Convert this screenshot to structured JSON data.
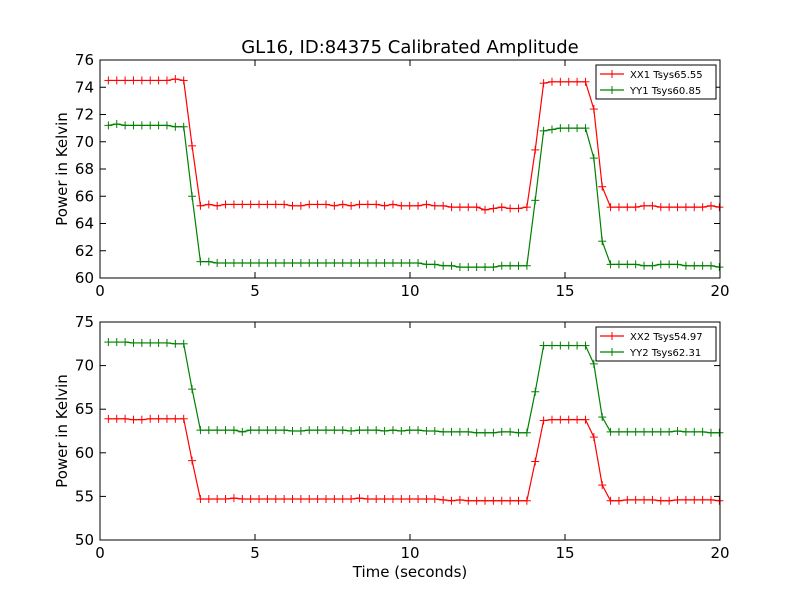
{
  "figure": {
    "title": "GL16, ID:84375 Calibrated Amplitude"
  },
  "chart_data": [
    {
      "type": "line",
      "title": "GL16, ID:84375 Calibrated Amplitude",
      "xlabel": "",
      "ylabel": "Power in Kelvin",
      "xlim": [
        0,
        20
      ],
      "ylim": [
        60,
        76
      ],
      "xticks": [
        0,
        5,
        10,
        15,
        20
      ],
      "yticks": [
        60,
        62,
        64,
        66,
        68,
        70,
        72,
        74,
        76
      ],
      "grid": false,
      "legend_position": "top-right",
      "x": [
        0.27,
        0.54,
        0.81,
        1.08,
        1.35,
        1.62,
        1.89,
        2.16,
        2.43,
        2.7,
        2.97,
        3.24,
        3.51,
        3.78,
        4.05,
        4.32,
        4.59,
        4.86,
        5.13,
        5.4,
        5.67,
        5.94,
        6.21,
        6.48,
        6.75,
        7.02,
        7.29,
        7.56,
        7.83,
        8.1,
        8.37,
        8.64,
        8.91,
        9.18,
        9.45,
        9.72,
        9.99,
        10.26,
        10.53,
        10.8,
        11.07,
        11.34,
        11.61,
        11.88,
        12.15,
        12.42,
        12.69,
        12.96,
        13.23,
        13.5,
        13.77,
        14.04,
        14.31,
        14.58,
        14.85,
        15.12,
        15.39,
        15.66,
        15.93,
        16.2,
        16.47,
        16.74,
        17.01,
        17.28,
        17.55,
        17.82,
        18.09,
        18.36,
        18.63,
        18.9,
        19.17,
        19.44,
        19.71,
        19.98
      ],
      "series": [
        {
          "name": "XX1 Tsys65.55",
          "color": "#ff0000",
          "values": [
            74.5,
            74.5,
            74.5,
            74.5,
            74.5,
            74.5,
            74.5,
            74.5,
            74.6,
            74.5,
            69.7,
            65.3,
            65.4,
            65.3,
            65.4,
            65.4,
            65.4,
            65.4,
            65.4,
            65.4,
            65.4,
            65.4,
            65.3,
            65.3,
            65.4,
            65.4,
            65.4,
            65.3,
            65.4,
            65.3,
            65.4,
            65.4,
            65.4,
            65.3,
            65.4,
            65.3,
            65.3,
            65.3,
            65.4,
            65.3,
            65.3,
            65.2,
            65.2,
            65.2,
            65.2,
            65.0,
            65.1,
            65.2,
            65.1,
            65.1,
            65.2,
            69.4,
            74.3,
            74.4,
            74.4,
            74.4,
            74.4,
            74.4,
            72.4,
            66.7,
            65.2,
            65.2,
            65.2,
            65.2,
            65.3,
            65.3,
            65.2,
            65.2,
            65.2,
            65.2,
            65.2,
            65.2,
            65.3,
            65.2
          ]
        },
        {
          "name": "YY1 Tsys60.85",
          "color": "#008000",
          "values": [
            71.2,
            71.3,
            71.2,
            71.2,
            71.2,
            71.2,
            71.2,
            71.2,
            71.1,
            71.1,
            66.0,
            61.2,
            61.2,
            61.1,
            61.1,
            61.1,
            61.1,
            61.1,
            61.1,
            61.1,
            61.1,
            61.1,
            61.1,
            61.1,
            61.1,
            61.1,
            61.1,
            61.1,
            61.1,
            61.1,
            61.1,
            61.1,
            61.1,
            61.1,
            61.1,
            61.1,
            61.1,
            61.1,
            61.0,
            61.0,
            60.9,
            60.9,
            60.8,
            60.8,
            60.8,
            60.8,
            60.8,
            60.9,
            60.9,
            60.9,
            60.9,
            65.7,
            70.8,
            70.9,
            71.0,
            71.0,
            71.0,
            71.0,
            68.8,
            62.7,
            61.0,
            61.0,
            61.0,
            61.0,
            60.9,
            60.9,
            61.0,
            61.0,
            61.0,
            60.9,
            60.9,
            60.9,
            60.9,
            60.8
          ]
        }
      ]
    },
    {
      "type": "line",
      "title": "",
      "xlabel": "Time (seconds)",
      "ylabel": "Power in Kelvin",
      "xlim": [
        0,
        20
      ],
      "ylim": [
        50,
        75
      ],
      "xticks": [
        0,
        5,
        10,
        15,
        20
      ],
      "yticks": [
        50,
        55,
        60,
        65,
        70,
        75
      ],
      "grid": false,
      "legend_position": "top-right",
      "x": [
        0.27,
        0.54,
        0.81,
        1.08,
        1.35,
        1.62,
        1.89,
        2.16,
        2.43,
        2.7,
        2.97,
        3.24,
        3.51,
        3.78,
        4.05,
        4.32,
        4.59,
        4.86,
        5.13,
        5.4,
        5.67,
        5.94,
        6.21,
        6.48,
        6.75,
        7.02,
        7.29,
        7.56,
        7.83,
        8.1,
        8.37,
        8.64,
        8.91,
        9.18,
        9.45,
        9.72,
        9.99,
        10.26,
        10.53,
        10.8,
        11.07,
        11.34,
        11.61,
        11.88,
        12.15,
        12.42,
        12.69,
        12.96,
        13.23,
        13.5,
        13.77,
        14.04,
        14.31,
        14.58,
        14.85,
        15.12,
        15.39,
        15.66,
        15.93,
        16.2,
        16.47,
        16.74,
        17.01,
        17.28,
        17.55,
        17.82,
        18.09,
        18.36,
        18.63,
        18.9,
        19.17,
        19.44,
        19.71,
        19.98
      ],
      "series": [
        {
          "name": "XX2 Tsys54.97",
          "color": "#ff0000",
          "values": [
            63.9,
            63.9,
            63.9,
            63.8,
            63.8,
            63.9,
            63.9,
            63.9,
            63.9,
            63.9,
            59.1,
            54.7,
            54.7,
            54.7,
            54.7,
            54.8,
            54.7,
            54.7,
            54.7,
            54.7,
            54.7,
            54.7,
            54.7,
            54.7,
            54.7,
            54.7,
            54.7,
            54.7,
            54.7,
            54.7,
            54.8,
            54.7,
            54.7,
            54.7,
            54.7,
            54.7,
            54.7,
            54.7,
            54.7,
            54.7,
            54.6,
            54.5,
            54.6,
            54.5,
            54.5,
            54.5,
            54.5,
            54.5,
            54.5,
            54.5,
            54.5,
            59.0,
            63.7,
            63.8,
            63.8,
            63.8,
            63.8,
            63.8,
            61.8,
            56.3,
            54.5,
            54.5,
            54.6,
            54.6,
            54.6,
            54.6,
            54.5,
            54.5,
            54.6,
            54.6,
            54.6,
            54.6,
            54.6,
            54.5
          ]
        },
        {
          "name": "YY2 Tsys62.31",
          "color": "#008000",
          "values": [
            72.7,
            72.7,
            72.7,
            72.6,
            72.6,
            72.6,
            72.6,
            72.6,
            72.5,
            72.5,
            67.3,
            62.6,
            62.6,
            62.6,
            62.6,
            62.6,
            62.4,
            62.6,
            62.6,
            62.6,
            62.6,
            62.6,
            62.5,
            62.5,
            62.6,
            62.6,
            62.6,
            62.6,
            62.6,
            62.5,
            62.6,
            62.6,
            62.6,
            62.5,
            62.6,
            62.5,
            62.6,
            62.6,
            62.5,
            62.5,
            62.4,
            62.4,
            62.4,
            62.4,
            62.3,
            62.3,
            62.3,
            62.4,
            62.4,
            62.3,
            62.3,
            67.0,
            72.3,
            72.3,
            72.3,
            72.3,
            72.3,
            72.3,
            70.2,
            64.1,
            62.4,
            62.4,
            62.4,
            62.4,
            62.4,
            62.4,
            62.4,
            62.4,
            62.5,
            62.4,
            62.4,
            62.4,
            62.3,
            62.3
          ]
        }
      ]
    }
  ]
}
